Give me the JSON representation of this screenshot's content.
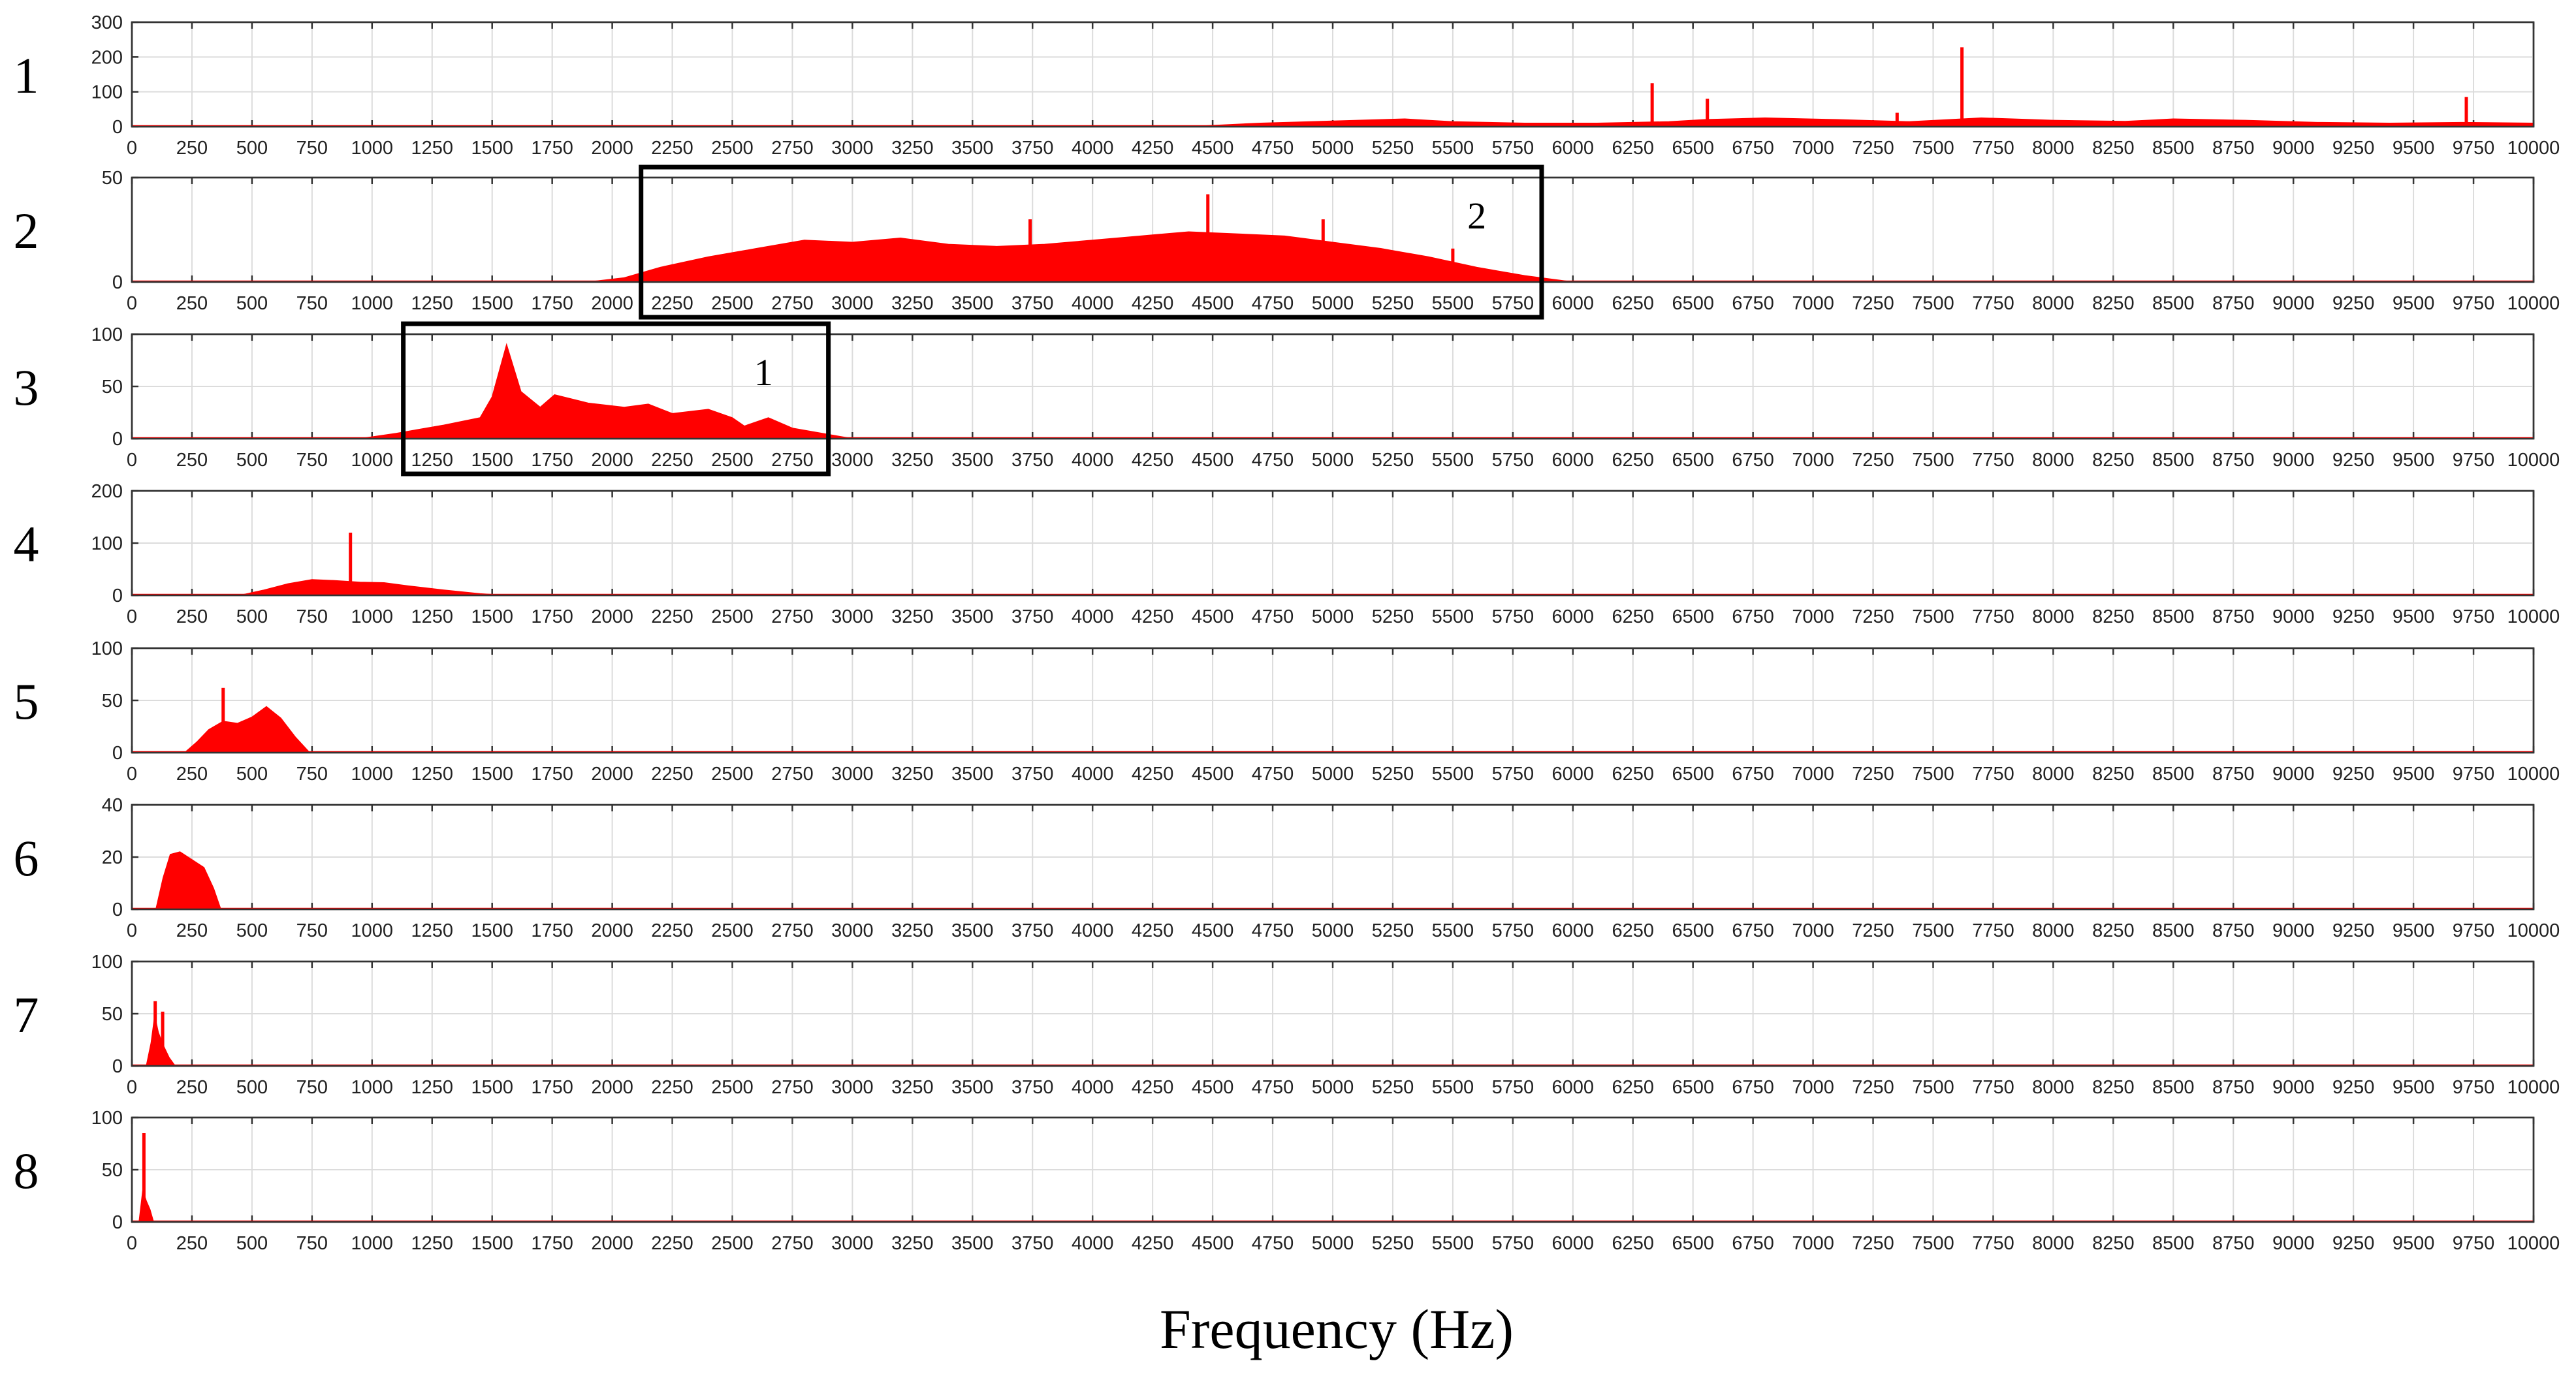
{
  "xlabel": "Frequency (Hz)",
  "chart_data": {
    "type": "area",
    "x_range": [
      0,
      10000
    ],
    "x_ticks": [
      0,
      250,
      500,
      750,
      1000,
      1250,
      1500,
      1750,
      2000,
      2250,
      2500,
      2750,
      3000,
      3250,
      3500,
      3750,
      4000,
      4250,
      4500,
      4750,
      5000,
      5250,
      5500,
      5750,
      6000,
      6250,
      6500,
      6750,
      7000,
      7250,
      7500,
      7750,
      8000,
      8250,
      8500,
      8750,
      9000,
      9250,
      9500,
      9750,
      10000
    ],
    "grid": true,
    "color": "#ff0000",
    "panels": [
      {
        "label": "1",
        "ylim": [
          0,
          300
        ],
        "y_ticks": [
          0,
          100,
          200,
          300
        ],
        "envelope": [
          [
            0,
            0
          ],
          [
            4400,
            0
          ],
          [
            4700,
            10
          ],
          [
            5000,
            16
          ],
          [
            5300,
            22
          ],
          [
            5500,
            14
          ],
          [
            5800,
            10
          ],
          [
            6100,
            10
          ],
          [
            6400,
            14
          ],
          [
            6550,
            20
          ],
          [
            6800,
            25
          ],
          [
            7100,
            20
          ],
          [
            7400,
            14
          ],
          [
            7700,
            25
          ],
          [
            8000,
            18
          ],
          [
            8300,
            15
          ],
          [
            8500,
            22
          ],
          [
            8800,
            18
          ],
          [
            9100,
            12
          ],
          [
            9400,
            10
          ],
          [
            9700,
            12
          ],
          [
            10000,
            10
          ]
        ],
        "peaks": [
          [
            6330,
            125
          ],
          [
            6560,
            80
          ],
          [
            7620,
            228
          ],
          [
            7350,
            40
          ],
          [
            9720,
            85
          ]
        ],
        "highlight": null
      },
      {
        "label": "2",
        "ylim": [
          0,
          50
        ],
        "y_ticks": [
          0,
          50
        ],
        "envelope": [
          [
            0,
            0
          ],
          [
            1900,
            0
          ],
          [
            2050,
            2
          ],
          [
            2200,
            7
          ],
          [
            2400,
            12
          ],
          [
            2600,
            16
          ],
          [
            2800,
            20
          ],
          [
            3000,
            19
          ],
          [
            3200,
            21
          ],
          [
            3400,
            18
          ],
          [
            3600,
            17
          ],
          [
            3800,
            18
          ],
          [
            4000,
            20
          ],
          [
            4200,
            22
          ],
          [
            4400,
            24
          ],
          [
            4600,
            23
          ],
          [
            4800,
            22
          ],
          [
            5000,
            19
          ],
          [
            5200,
            16
          ],
          [
            5400,
            12
          ],
          [
            5600,
            7
          ],
          [
            5800,
            3
          ],
          [
            6000,
            0
          ],
          [
            10000,
            0
          ]
        ],
        "peaks": [
          [
            4480,
            42
          ],
          [
            3740,
            30
          ],
          [
            4960,
            30
          ],
          [
            5500,
            16
          ]
        ],
        "highlight": {
          "x0": 2120,
          "x1": 5870,
          "label": "2",
          "label_x": 5600
        }
      },
      {
        "label": "3",
        "ylim": [
          0,
          100
        ],
        "y_ticks": [
          0,
          50,
          100
        ],
        "envelope": [
          [
            0,
            0
          ],
          [
            950,
            0
          ],
          [
            1100,
            5
          ],
          [
            1300,
            13
          ],
          [
            1450,
            20
          ],
          [
            1500,
            40
          ],
          [
            1560,
            90
          ],
          [
            1620,
            45
          ],
          [
            1700,
            30
          ],
          [
            1760,
            42
          ],
          [
            1900,
            34
          ],
          [
            2050,
            30
          ],
          [
            2150,
            33
          ],
          [
            2250,
            24
          ],
          [
            2400,
            28
          ],
          [
            2500,
            20
          ],
          [
            2550,
            12
          ],
          [
            2650,
            20
          ],
          [
            2750,
            10
          ],
          [
            2900,
            4
          ],
          [
            3000,
            0
          ],
          [
            10000,
            0
          ]
        ],
        "peaks": [],
        "highlight": {
          "x0": 1130,
          "x1": 2900,
          "label": "1",
          "label_x": 2630
        }
      },
      {
        "label": "4",
        "ylim": [
          0,
          200
        ],
        "y_ticks": [
          0,
          100,
          200
        ],
        "envelope": [
          [
            0,
            0
          ],
          [
            450,
            0
          ],
          [
            550,
            10
          ],
          [
            650,
            22
          ],
          [
            750,
            30
          ],
          [
            850,
            28
          ],
          [
            950,
            25
          ],
          [
            1050,
            24
          ],
          [
            1150,
            18
          ],
          [
            1300,
            10
          ],
          [
            1450,
            3
          ],
          [
            1550,
            0
          ],
          [
            10000,
            0
          ]
        ],
        "peaks": [
          [
            910,
            120
          ]
        ],
        "highlight": null
      },
      {
        "label": "5",
        "ylim": [
          0,
          100
        ],
        "y_ticks": [
          0,
          50,
          100
        ],
        "envelope": [
          [
            0,
            0
          ],
          [
            220,
            0
          ],
          [
            270,
            10
          ],
          [
            320,
            22
          ],
          [
            380,
            30
          ],
          [
            440,
            28
          ],
          [
            500,
            34
          ],
          [
            560,
            44
          ],
          [
            620,
            33
          ],
          [
            680,
            15
          ],
          [
            740,
            0
          ],
          [
            10000,
            0
          ]
        ],
        "peaks": [
          [
            380,
            62
          ]
        ],
        "highlight": null
      },
      {
        "label": "6",
        "ylim": [
          0,
          40
        ],
        "y_ticks": [
          0,
          20,
          40
        ],
        "envelope": [
          [
            0,
            0
          ],
          [
            100,
            0
          ],
          [
            130,
            12
          ],
          [
            160,
            21
          ],
          [
            200,
            22
          ],
          [
            250,
            19
          ],
          [
            300,
            16
          ],
          [
            340,
            8
          ],
          [
            370,
            0
          ],
          [
            10000,
            0
          ]
        ],
        "peaks": [],
        "highlight": null
      },
      {
        "label": "7",
        "ylim": [
          0,
          100
        ],
        "y_ticks": [
          0,
          50,
          100
        ],
        "envelope": [
          [
            0,
            0
          ],
          [
            60,
            0
          ],
          [
            80,
            22
          ],
          [
            95,
            48
          ],
          [
            110,
            32
          ],
          [
            130,
            20
          ],
          [
            155,
            8
          ],
          [
            180,
            0
          ],
          [
            10000,
            0
          ]
        ],
        "peaks": [
          [
            97,
            62
          ],
          [
            128,
            52
          ]
        ],
        "highlight": null
      },
      {
        "label": "8",
        "ylim": [
          0,
          100
        ],
        "y_ticks": [
          0,
          50,
          100
        ],
        "envelope": [
          [
            0,
            0
          ],
          [
            30,
            0
          ],
          [
            45,
            30
          ],
          [
            60,
            20
          ],
          [
            75,
            12
          ],
          [
            90,
            0
          ],
          [
            10000,
            0
          ]
        ],
        "peaks": [
          [
            50,
            85
          ]
        ],
        "highlight": null
      }
    ]
  }
}
